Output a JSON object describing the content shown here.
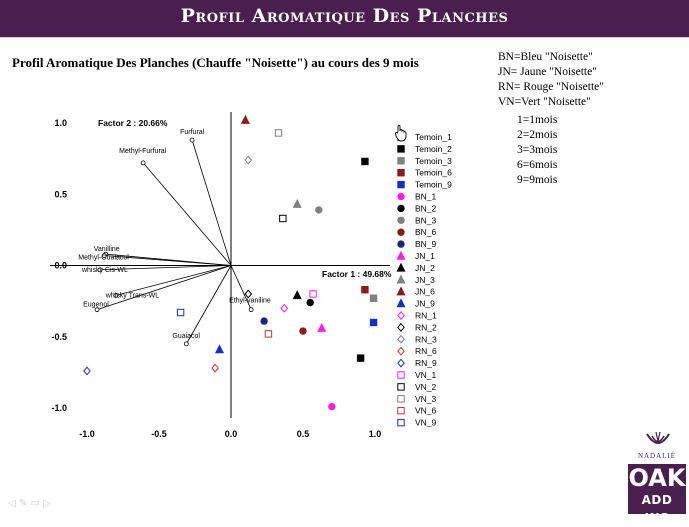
{
  "banner": {
    "title": "Profil Aromatique Des Planches"
  },
  "subtitle": "Profil Aromatique Des Planches  (Chauffe \"Noisette\") au cours des 9 mois",
  "color_key": [
    "BN=Bleu \"Noisette\"",
    "JN= Jaune \"Noisette\"",
    "RN= Rouge \"Noisette\"",
    "VN=Vert \"Noisette\""
  ],
  "month_key": [
    "1=1mois",
    "2=2mois",
    "3=3mois",
    "6=6mois",
    "9=9mois"
  ],
  "logo": {
    "brand": "NADALIÉ",
    "line1": "OAK",
    "line2": "ADD INS"
  },
  "colors": {
    "banner": "#4a1e4f",
    "black": "#000000",
    "grey": "#808080",
    "darkred": "#8b1a1a",
    "blue": "#1530c8",
    "magenta": "#ff1ee6",
    "rust": "#c0392b",
    "navy": "#1a237e",
    "olive": "#808000",
    "maroon": "#8b0000"
  },
  "chart_data": {
    "type": "scatter",
    "title": "",
    "xlabel": "Factor 1 : 49.68%",
    "ylabel": "Factor 2 : 20.66%",
    "xlim": [
      -1.1,
      1.1
    ],
    "ylim": [
      -1.15,
      1.1
    ],
    "xticks": [
      -1.0,
      -0.5,
      0.0,
      0.5,
      1.0
    ],
    "xtick_labels": [
      "-1.0",
      "-0.5",
      "0.0",
      "0.5",
      "1.0"
    ],
    "yticks": [
      1.0,
      0.5,
      0.0,
      -0.5,
      -1.0
    ],
    "ytick_labels": [
      "1.0",
      "0.5",
      "0.0",
      "-0.5",
      "-1.0"
    ],
    "legend_position": "right",
    "vectors": [
      {
        "label": "Furfural",
        "x": -0.27,
        "y": 0.88
      },
      {
        "label": "Methyl-Furfural",
        "x": -0.61,
        "y": 0.72
      },
      {
        "label": "Vanilline",
        "x": -0.87,
        "y": 0.08
      },
      {
        "label": "Methyl-Guaiacol",
        "x": -0.88,
        "y": 0.07
      },
      {
        "label": "whisky Cis-WL",
        "x": -0.91,
        "y": -0.03
      },
      {
        "label": "whisky Trans-WL",
        "x": -0.8,
        "y": -0.21
      },
      {
        "label": "Eugenol",
        "x": -0.93,
        "y": -0.31
      },
      {
        "label": "Guaiacol",
        "x": -0.31,
        "y": -0.55
      },
      {
        "label": "Ethyl-vaniline",
        "x": 0.14,
        "y": -0.31
      }
    ],
    "series": [
      {
        "name": "Temoin_1",
        "marker": "square",
        "color": "#000000",
        "fill": true,
        "x": 0.93,
        "y": 0.73
      },
      {
        "name": "Temoin_2",
        "marker": "square",
        "color": "#000000",
        "fill": true,
        "x": 0.9,
        "y": -0.65
      },
      {
        "name": "Temoin_3",
        "marker": "square",
        "color": "#808080",
        "fill": true,
        "x": 0.99,
        "y": -0.23
      },
      {
        "name": "Temoin_6",
        "marker": "square",
        "color": "#8b1a1a",
        "fill": true,
        "x": 0.93,
        "y": -0.17
      },
      {
        "name": "Temoin_9",
        "marker": "square",
        "color": "#1530c8",
        "fill": true,
        "x": 0.99,
        "y": -0.4
      },
      {
        "name": "BN_1",
        "marker": "circle",
        "color": "#ff1ee6",
        "fill": true,
        "x": 0.7,
        "y": -0.99
      },
      {
        "name": "BN_2",
        "marker": "circle",
        "color": "#000000",
        "fill": true,
        "x": 0.55,
        "y": -0.26
      },
      {
        "name": "BN_3",
        "marker": "circle",
        "color": "#808080",
        "fill": true,
        "x": 0.61,
        "y": 0.39
      },
      {
        "name": "BN_6",
        "marker": "circle",
        "color": "#8b1a1a",
        "fill": true,
        "x": 0.5,
        "y": -0.46
      },
      {
        "name": "BN_9",
        "marker": "circle",
        "color": "#1a237e",
        "fill": true,
        "x": 0.23,
        "y": -0.39
      },
      {
        "name": "JN_1",
        "marker": "triangle",
        "color": "#ff1ee6",
        "fill": true,
        "x": 0.63,
        "y": -0.44
      },
      {
        "name": "JN_2",
        "marker": "triangle",
        "color": "#000000",
        "fill": true,
        "x": 0.46,
        "y": -0.21
      },
      {
        "name": "JN_3",
        "marker": "triangle",
        "color": "#808080",
        "fill": true,
        "x": 0.46,
        "y": 0.43
      },
      {
        "name": "JN_6",
        "marker": "triangle",
        "color": "#8b1a1a",
        "fill": true,
        "x": 0.1,
        "y": 1.02
      },
      {
        "name": "JN_9",
        "marker": "triangle",
        "color": "#1530c8",
        "fill": true,
        "x": -0.08,
        "y": -0.59
      },
      {
        "name": "RN_1",
        "marker": "diamond",
        "color": "#ff1ee6",
        "fill": false,
        "x": 0.37,
        "y": -0.3
      },
      {
        "name": "RN_2",
        "marker": "diamond",
        "color": "#000000",
        "fill": false,
        "x": 0.12,
        "y": -0.2
      },
      {
        "name": "RN_3",
        "marker": "diamond",
        "color": "#808080",
        "fill": false,
        "x": 0.12,
        "y": 0.74
      },
      {
        "name": "RN_6",
        "marker": "diamond",
        "color": "#c0392b",
        "fill": false,
        "x": -0.11,
        "y": -0.72
      },
      {
        "name": "RN_9",
        "marker": "diamond",
        "color": "#1530c8",
        "fill": false,
        "x": -1.0,
        "y": -0.74
      },
      {
        "name": "VN_1",
        "marker": "square",
        "color": "#ff1ee6",
        "fill": false,
        "x": 0.57,
        "y": -0.2
      },
      {
        "name": "VN_2",
        "marker": "square",
        "color": "#000000",
        "fill": false,
        "x": 0.36,
        "y": 0.33
      },
      {
        "name": "VN_3",
        "marker": "square",
        "color": "#808080",
        "fill": false,
        "x": 0.33,
        "y": 0.93
      },
      {
        "name": "VN_6",
        "marker": "square",
        "color": "#c0392b",
        "fill": false,
        "x": 0.26,
        "y": -0.48
      },
      {
        "name": "VN_9",
        "marker": "square",
        "color": "#1530c8",
        "fill": false,
        "x": -0.35,
        "y": -0.33
      }
    ]
  }
}
